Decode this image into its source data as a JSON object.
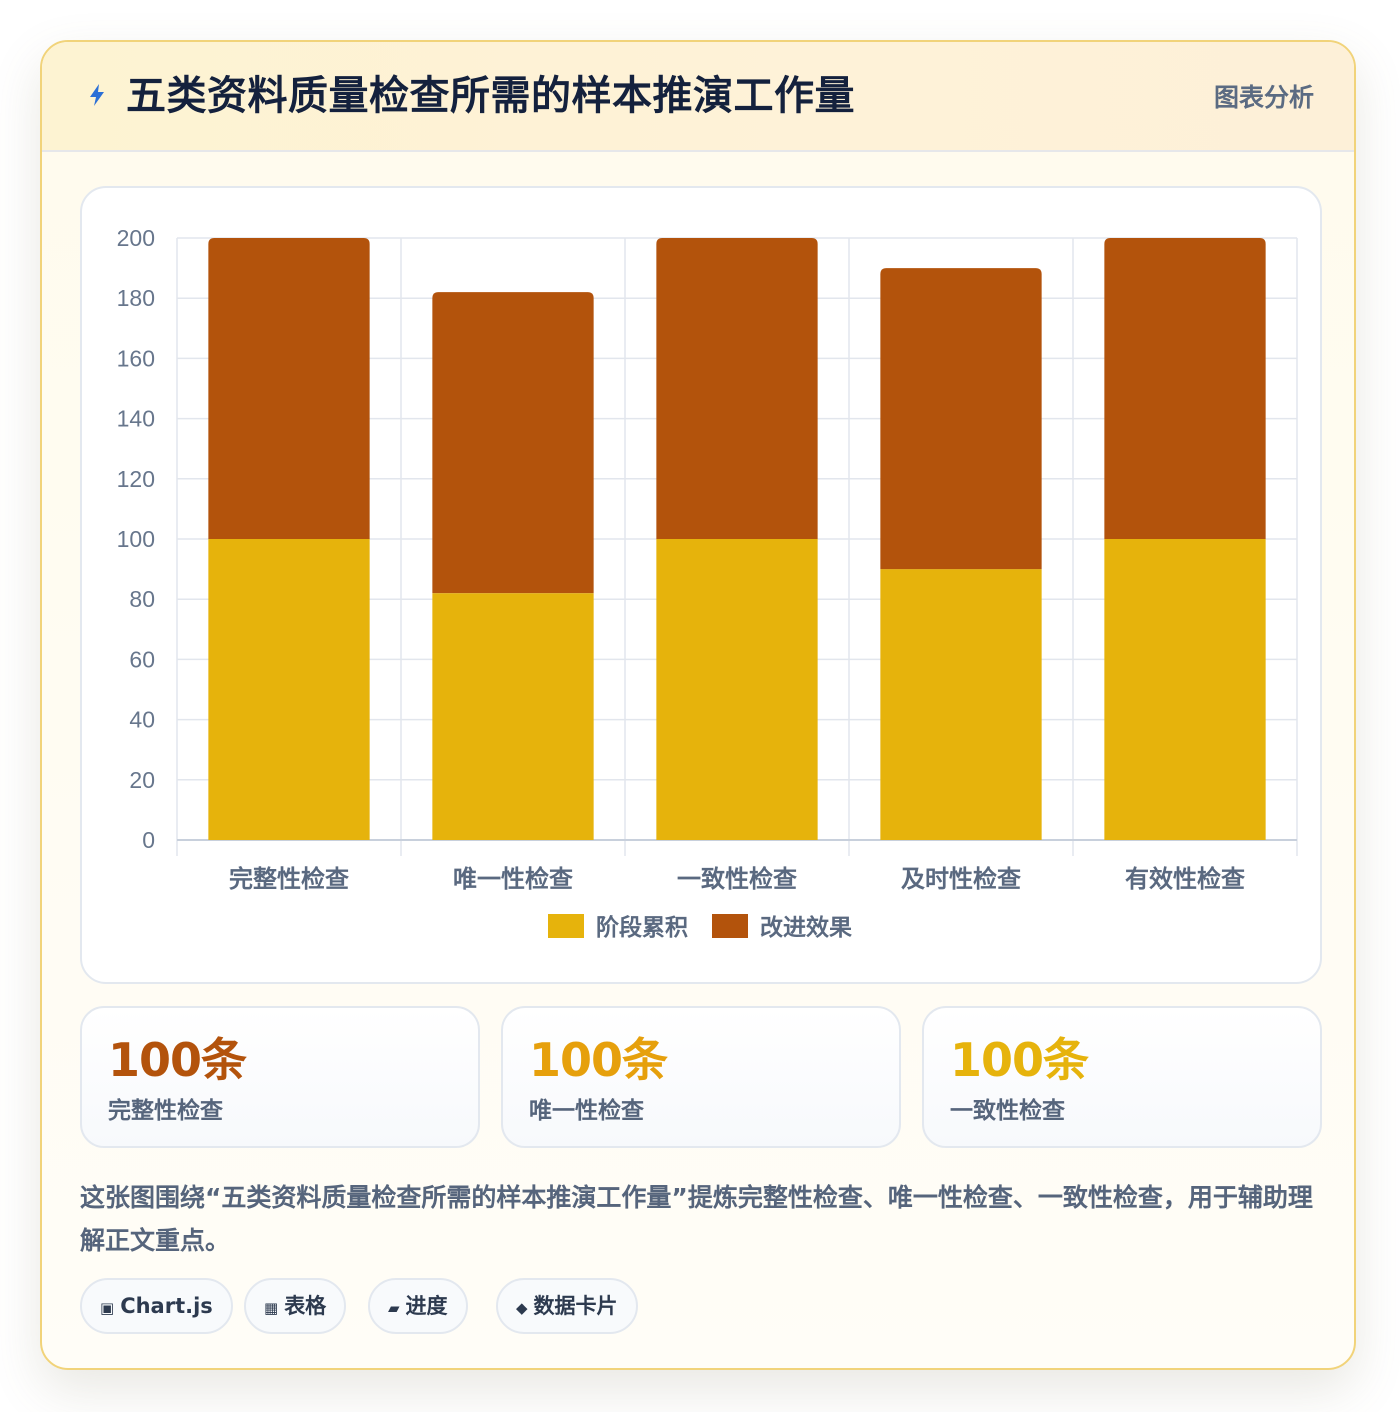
{
  "header": {
    "title": "五类资料质量检查所需的样本推演工作量",
    "tag": "图表分析"
  },
  "chart_data": {
    "type": "bar",
    "stacked": true,
    "categories": [
      "完整性检查",
      "唯一性检查",
      "一致性检查",
      "及时性检查",
      "有效性检查"
    ],
    "series": [
      {
        "name": "阶段累积",
        "color": "#e6b30c",
        "values": [
          100,
          82,
          100,
          90,
          100
        ]
      },
      {
        "name": "改进效果",
        "color": "#b3530c",
        "values": [
          100,
          100,
          100,
          100,
          100
        ]
      }
    ],
    "ylim": [
      0,
      200
    ],
    "yticks": [
      0,
      20,
      40,
      60,
      80,
      100,
      120,
      140,
      160,
      180,
      200
    ],
    "grid": true,
    "legend": "bottom"
  },
  "stats": [
    {
      "value": "100条",
      "label": "完整性检查",
      "color": "#b3530c"
    },
    {
      "value": "100条",
      "label": "唯一性检查",
      "color": "#e6a00c"
    },
    {
      "value": "100条",
      "label": "一致性检查",
      "color": "#e6b30c"
    }
  ],
  "description": "这张图围绕“五类资料质量检查所需的样本推演工作量”提炼完整性检查、唯一性检查、一致性检查，用于辅助理解正文重点。",
  "chips": [
    {
      "icon": "▣",
      "label": "Chart.js"
    },
    {
      "icon": "▦",
      "label": "表格"
    },
    {
      "icon": "▰",
      "label": "进度"
    },
    {
      "icon": "◆",
      "label": "数据卡片"
    }
  ]
}
